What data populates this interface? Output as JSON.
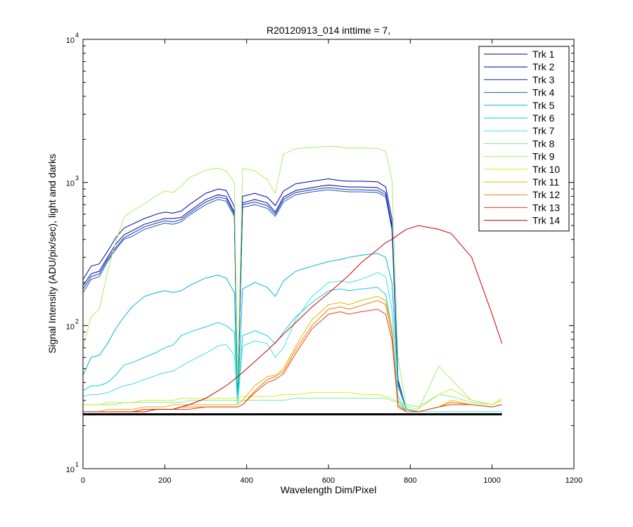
{
  "chart_data": {
    "type": "line",
    "title": "R20120913_014 inttime = 7,",
    "xlabel": "Wavelength Dim/Pixel",
    "ylabel": "Signal Intensity (ADU/pix/sec), light and darks",
    "xlim": [
      0,
      1200
    ],
    "ylim": [
      10,
      10000
    ],
    "yscale": "log",
    "x_ticks": [
      0,
      200,
      400,
      600,
      800,
      1000,
      1200
    ],
    "x_tick_labels": [
      "0",
      "200",
      "400",
      "600",
      "800",
      "1000",
      "1200"
    ],
    "y_ticks": [
      10,
      100,
      1000,
      10000
    ],
    "y_tick_bases": [
      "10",
      "10",
      "10",
      "10"
    ],
    "y_tick_exponents": [
      "1",
      "2",
      "3",
      "4"
    ],
    "grid": false,
    "legend_position": "top-right",
    "legend": [
      "Trk 1",
      "Trk 2",
      "Trk 3",
      "Trk 4",
      "Trk 5",
      "Trk 6",
      "Trk 7",
      "Trk 8",
      "Trk 9",
      "Trk 10",
      "Trk 11",
      "Trk 12",
      "Trk 13",
      "Trk 14"
    ],
    "x": [
      0,
      20,
      40,
      60,
      80,
      100,
      120,
      150,
      180,
      200,
      220,
      240,
      260,
      300,
      330,
      350,
      370,
      378,
      390,
      420,
      450,
      470,
      490,
      520,
      560,
      600,
      630,
      650,
      680,
      720,
      740,
      755,
      770,
      790,
      820,
      870,
      900,
      950,
      1000,
      1024
    ],
    "series": [
      {
        "name": "Trk 1",
        "color": "#00008f",
        "values": [
          190,
          230,
          240,
          300,
          370,
          430,
          460,
          510,
          540,
          560,
          560,
          570,
          630,
          760,
          820,
          800,
          620,
          30,
          720,
          760,
          720,
          620,
          790,
          880,
          920,
          960,
          940,
          930,
          930,
          920,
          850,
          500,
          40,
          26,
          25,
          25,
          25,
          25,
          25,
          25
        ]
      },
      {
        "name": "Trk 2",
        "color": "#0000b3",
        "values": [
          210,
          260,
          270,
          330,
          410,
          480,
          510,
          560,
          600,
          620,
          610,
          630,
          700,
          840,
          900,
          880,
          680,
          32,
          800,
          840,
          790,
          690,
          870,
          980,
          1020,
          1060,
          1030,
          1020,
          1020,
          1010,
          930,
          560,
          42,
          26,
          25,
          25,
          25,
          25,
          25,
          25
        ]
      },
      {
        "name": "Trk 3",
        "color": "#0a2ec8",
        "values": [
          180,
          220,
          230,
          290,
          350,
          410,
          440,
          490,
          520,
          540,
          530,
          550,
          610,
          730,
          790,
          770,
          600,
          30,
          700,
          730,
          690,
          600,
          760,
          850,
          890,
          920,
          900,
          890,
          890,
          880,
          820,
          490,
          40,
          26,
          25,
          25,
          25,
          25,
          25,
          25
        ]
      },
      {
        "name": "Trk 4",
        "color": "#1e5aa8",
        "values": [
          170,
          210,
          220,
          280,
          340,
          400,
          420,
          470,
          500,
          520,
          510,
          530,
          590,
          700,
          760,
          740,
          580,
          30,
          670,
          700,
          660,
          580,
          730,
          820,
          860,
          890,
          870,
          860,
          860,
          850,
          790,
          470,
          38,
          26,
          25,
          25,
          25,
          25,
          25,
          25
        ]
      },
      {
        "name": "Trk 5",
        "color": "#00b2d8",
        "values": [
          45,
          60,
          62,
          75,
          95,
          115,
          135,
          160,
          170,
          175,
          170,
          175,
          190,
          215,
          225,
          215,
          170,
          30,
          180,
          200,
          185,
          160,
          205,
          240,
          260,
          280,
          290,
          300,
          310,
          320,
          300,
          200,
          40,
          26,
          25,
          25,
          25,
          25,
          25,
          25
        ]
      },
      {
        "name": "Trk 6",
        "color": "#16c8dc",
        "values": [
          35,
          38,
          38,
          40,
          45,
          53,
          55,
          60,
          65,
          70,
          73,
          85,
          90,
          98,
          105,
          100,
          90,
          30,
          85,
          92,
          85,
          75,
          90,
          115,
          145,
          175,
          180,
          175,
          180,
          185,
          165,
          95,
          30,
          25,
          25,
          25,
          25,
          25,
          25,
          25
        ]
      },
      {
        "name": "Trk 7",
        "color": "#40e0e0",
        "values": [
          32,
          33,
          33,
          34,
          36,
          38,
          39,
          42,
          45,
          47,
          48,
          52,
          56,
          64,
          72,
          74,
          62,
          28,
          72,
          78,
          75,
          60,
          70,
          110,
          160,
          200,
          205,
          200,
          210,
          235,
          220,
          130,
          32,
          25,
          25,
          25,
          25,
          25,
          25,
          25
        ]
      },
      {
        "name": "Trk 8",
        "color": "#7ce8a8",
        "values": [
          28,
          28,
          28,
          28,
          28,
          29,
          29,
          29,
          29,
          29,
          29,
          29,
          30,
          30,
          30,
          30,
          30,
          30,
          30,
          30,
          30,
          30,
          30,
          31,
          31,
          31,
          31,
          31,
          31,
          31,
          31,
          30,
          29,
          28,
          27,
          33,
          32,
          29,
          28,
          30
        ]
      },
      {
        "name": "Trk 9",
        "color": "#a8f064",
        "values": [
          70,
          115,
          130,
          240,
          380,
          570,
          630,
          710,
          810,
          870,
          850,
          940,
          1080,
          1220,
          1260,
          1200,
          1000,
          40,
          1250,
          1210,
          1050,
          840,
          1580,
          1720,
          1760,
          1790,
          1770,
          1740,
          1740,
          1730,
          1650,
          1050,
          60,
          27,
          26,
          52,
          42,
          30,
          28,
          30
        ]
      },
      {
        "name": "Trk 10",
        "color": "#d0f020",
        "values": [
          28,
          28,
          28,
          29,
          29,
          29,
          29,
          30,
          30,
          30,
          30,
          31,
          31,
          31,
          31,
          31,
          31,
          31,
          32,
          32,
          32,
          32,
          33,
          33,
          34,
          34,
          34,
          34,
          33,
          33,
          32,
          31,
          29,
          27,
          26,
          33,
          36,
          30,
          28,
          31
        ]
      },
      {
        "name": "Trk 11",
        "color": "#e8b400",
        "values": [
          25,
          25,
          25,
          26,
          26,
          26,
          26,
          27,
          27,
          27,
          28,
          28,
          28,
          28,
          28,
          28,
          28,
          28,
          30,
          38,
          44,
          45,
          50,
          72,
          110,
          140,
          145,
          140,
          150,
          160,
          150,
          95,
          28,
          25,
          25,
          27,
          30,
          28,
          27,
          28
        ]
      },
      {
        "name": "Trk 12",
        "color": "#f07a00",
        "values": [
          25,
          25,
          25,
          25,
          25,
          25,
          25,
          26,
          26,
          26,
          26,
          27,
          27,
          27,
          27,
          27,
          27,
          27,
          28,
          35,
          42,
          44,
          48,
          68,
          100,
          130,
          135,
          130,
          138,
          150,
          140,
          88,
          28,
          25,
          25,
          27,
          29,
          28,
          27,
          28
        ]
      },
      {
        "name": "Trk 13",
        "color": "#e83c14",
        "values": [
          25,
          25,
          25,
          25,
          25,
          25,
          25,
          26,
          26,
          26,
          26,
          26,
          26,
          27,
          27,
          27,
          27,
          27,
          28,
          34,
          40,
          42,
          46,
          64,
          95,
          120,
          125,
          120,
          125,
          130,
          120,
          80,
          27,
          25,
          25,
          27,
          28,
          28,
          27,
          28
        ]
      },
      {
        "name": "Trk 14",
        "color": "#c80000",
        "values": [
          25,
          25,
          25,
          25,
          25,
          25,
          25,
          25,
          26,
          26,
          26,
          27,
          28,
          31,
          35,
          38,
          42,
          44,
          47,
          56,
          67,
          76,
          87,
          105,
          135,
          168,
          200,
          225,
          275,
          340,
          380,
          400,
          430,
          470,
          500,
          470,
          440,
          300,
          120,
          75
        ]
      }
    ],
    "dark_baseline": {
      "color": "#000000",
      "value": 24
    }
  }
}
